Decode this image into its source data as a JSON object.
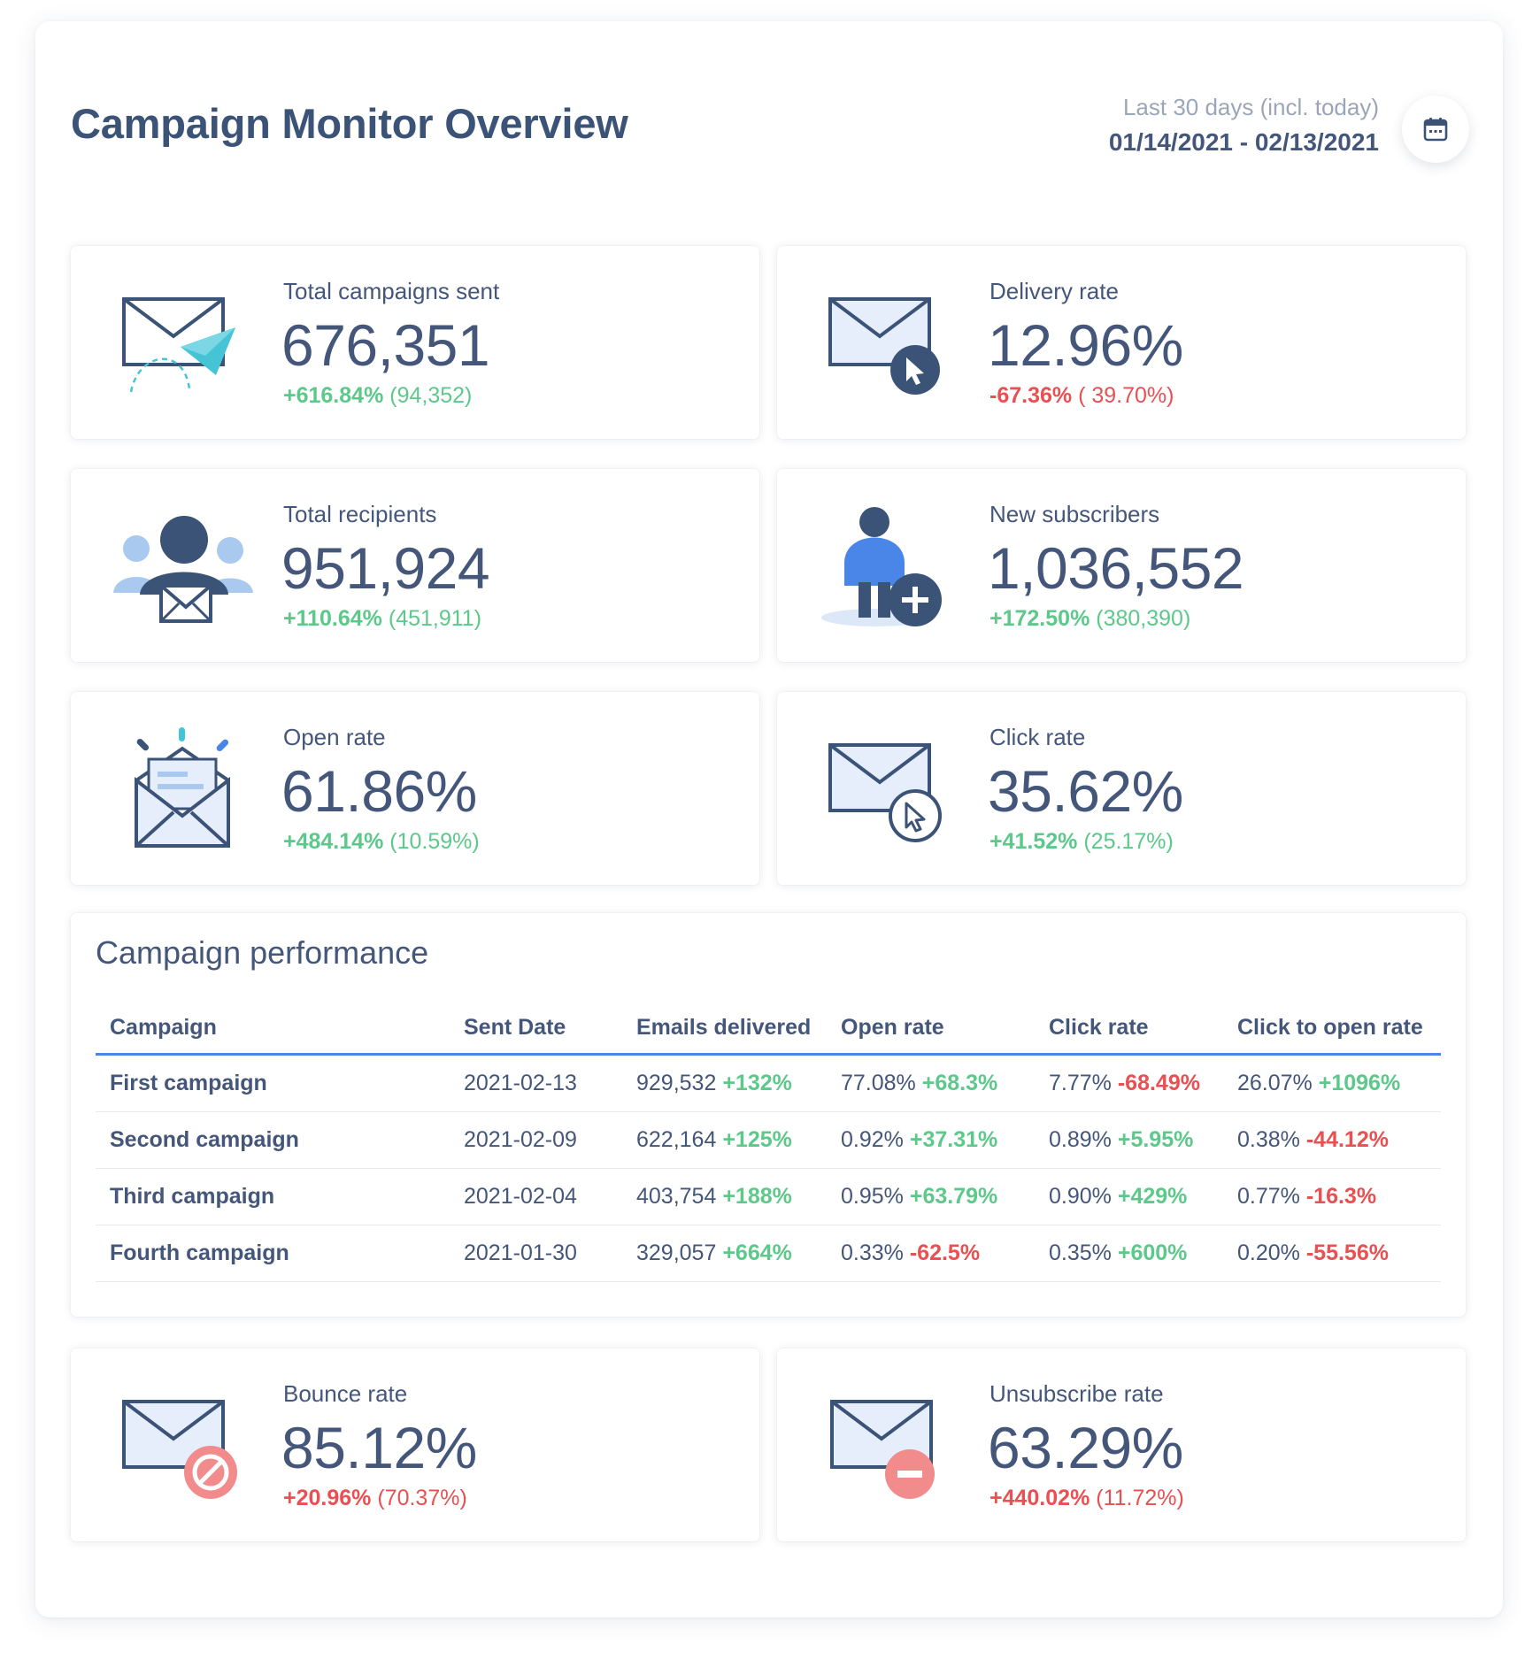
{
  "header": {
    "title": "Campaign Monitor Overview",
    "range_label": "Last 30 days (incl. today)",
    "range_dates": "01/14/2021 - 02/13/2021"
  },
  "colors": {
    "positive": "#5cc98a",
    "negative": "#ea4f52",
    "accent": "#4a86e8",
    "text": "#44567a"
  },
  "kpis": {
    "campaigns_sent": {
      "label": "Total campaigns sent",
      "value": "676,351",
      "change": "+616.84%",
      "previous": "(94,352)",
      "icon": "paper-plane-envelope-icon"
    },
    "delivery_rate": {
      "label": "Delivery rate",
      "value": "12.96%",
      "change": "-67.36%",
      "previous": "( 39.70%)",
      "icon": "envelope-cursor-icon"
    },
    "total_recipients": {
      "label": "Total recipients",
      "value": "951,924",
      "change": "+110.64%",
      "previous": "(451,911)",
      "icon": "recipients-group-icon"
    },
    "new_subscribers": {
      "label": "New subscribers",
      "value": "1,036,552",
      "change": "+172.50%",
      "previous": "(380,390)",
      "icon": "person-add-icon"
    },
    "open_rate": {
      "label": "Open rate",
      "value": "61.86%",
      "change": "+484.14%",
      "previous": "(10.59%)",
      "icon": "open-envelope-icon"
    },
    "click_rate": {
      "label": "Click rate",
      "value": "35.62%",
      "change": "+41.52%",
      "previous": "(25.17%)",
      "icon": "envelope-click-icon"
    },
    "bounce_rate": {
      "label": "Bounce rate",
      "value": "85.12%",
      "change": "+20.96%",
      "previous": "(70.37%)",
      "icon": "envelope-blocked-icon"
    },
    "unsubscribe_rate": {
      "label": "Unsubscribe rate",
      "value": "63.29%",
      "change": "+440.02%",
      "previous": "(11.72%)",
      "icon": "envelope-minus-icon"
    }
  },
  "performance": {
    "title": "Campaign performance",
    "columns": [
      "Campaign",
      "Sent Date",
      "Emails delivered",
      "Open rate",
      "Click rate",
      "Click to open rate"
    ],
    "rows": [
      {
        "name": "First campaign",
        "date": "2021-02-13",
        "delivered": "929,532",
        "delivered_change": "+132%",
        "open": "77.08%",
        "open_change": "+68.3%",
        "click": "7.77%",
        "click_change": "-68.49%",
        "cto": "26.07%",
        "cto_change": "+1096%"
      },
      {
        "name": "Second campaign",
        "date": "2021-02-09",
        "delivered": "622,164",
        "delivered_change": "+125%",
        "open": "0.92%",
        "open_change": "+37.31%",
        "click": "0.89%",
        "click_change": "+5.95%",
        "cto": "0.38%",
        "cto_change": "-44.12%"
      },
      {
        "name": "Third campaign",
        "date": "2021-02-04",
        "delivered": "403,754",
        "delivered_change": "+188%",
        "open": "0.95%",
        "open_change": "+63.79%",
        "click": "0.90%",
        "click_change": "+429%",
        "cto": "0.77%",
        "cto_change": "-16.3%"
      },
      {
        "name": "Fourth campaign",
        "date": "2021-01-30",
        "delivered": "329,057",
        "delivered_change": "+664%",
        "open": "0.33%",
        "open_change": "-62.5%",
        "click": "0.35%",
        "click_change": "+600%",
        "cto": "0.20%",
        "cto_change": "-55.56%"
      }
    ]
  }
}
